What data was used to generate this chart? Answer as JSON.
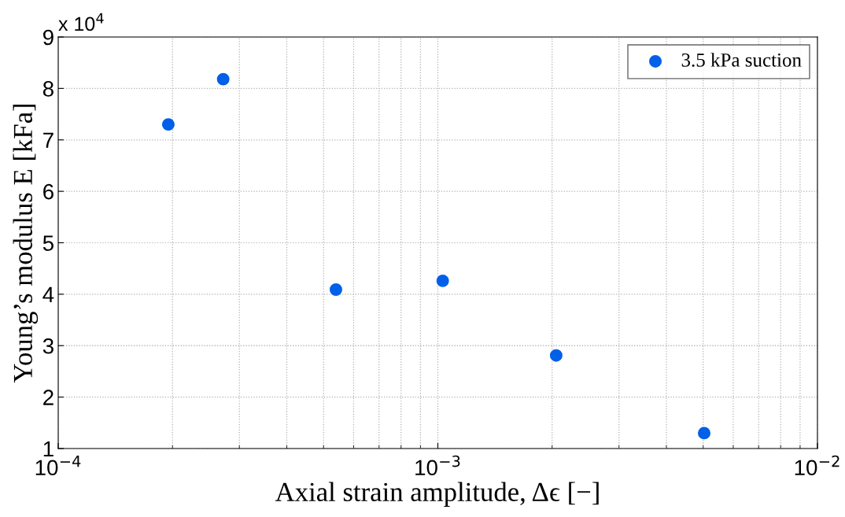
{
  "chart_data": {
    "type": "scatter",
    "xlabel": "Axial strain amplitude, Δϵ [−]",
    "ylabel": "Young’s modulus E [kFa]",
    "annotations": [
      "x 10$^{4}$"
    ],
    "series": [
      {
        "name": "3.5 kPa suction",
        "color": "#0060e8",
        "x": [
          0.000195,
          0.000272,
          0.000539,
          0.00103,
          0.00205,
          0.00503
        ],
        "values": [
          7.3,
          8.18,
          4.09,
          4.26,
          2.81,
          1.3
        ]
      }
    ],
    "log": "x",
    "xlim": [
      0.0001,
      0.01
    ],
    "xticks": [
      {
        "value": 0.0001,
        "label": "10$^{−4}$"
      },
      {
        "value": 0.001,
        "label": "10$^{−3}$"
      },
      {
        "value": 0.01,
        "label": "10$^{−2}$"
      }
    ],
    "ylim": [
      1,
      9
    ],
    "yticks": [
      1,
      2,
      3,
      4,
      5,
      6,
      7,
      8,
      9
    ],
    "grid": true,
    "legend": "top right",
    "marker": "circle"
  }
}
